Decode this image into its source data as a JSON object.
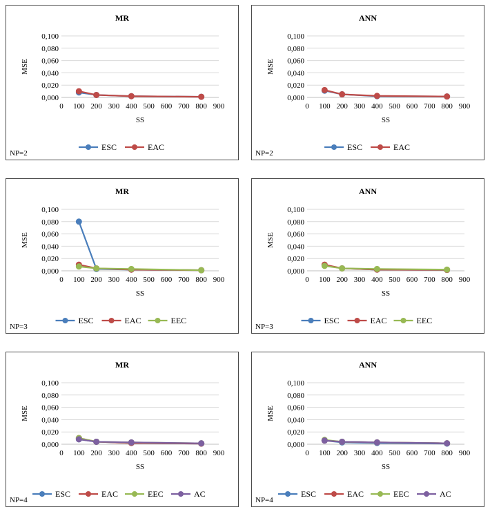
{
  "colors": {
    "ESC": "#4a7ebb",
    "EAC": "#be4b48",
    "EEC": "#98b954",
    "AC": "#7d60a0",
    "grid": "#d9d9d9",
    "axis": "#bfbfbf"
  },
  "chart_data": [
    {
      "type": "line",
      "title": "MR",
      "xlabel": "SS",
      "ylabel": "MSE",
      "np_label": "NP=2",
      "xlim": [
        0,
        900
      ],
      "xticks": [
        "0",
        "100",
        "200",
        "300",
        "400",
        "500",
        "600",
        "700",
        "800",
        "900"
      ],
      "ylim": [
        0,
        0.1
      ],
      "yticks": [
        "0,000",
        "0,020",
        "0,040",
        "0,060",
        "0,080",
        "0,100"
      ],
      "grid": true,
      "legend": "bottom",
      "x": [
        100,
        200,
        400,
        800
      ],
      "series": [
        {
          "name": "ESC",
          "values": [
            0.008,
            0.004,
            0.002,
            0.001
          ]
        },
        {
          "name": "EAC",
          "values": [
            0.01,
            0.004,
            0.002,
            0.001
          ]
        }
      ]
    },
    {
      "type": "line",
      "title": "ANN",
      "xlabel": "SS",
      "ylabel": "MSE",
      "np_label": "NP=2",
      "xlim": [
        0,
        900
      ],
      "xticks": [
        "0",
        "100",
        "200",
        "300",
        "400",
        "500",
        "600",
        "700",
        "800",
        "900"
      ],
      "ylim": [
        0,
        0.1
      ],
      "yticks": [
        "0,000",
        "0,020",
        "0,040",
        "0,060",
        "0,080",
        "0,100"
      ],
      "grid": true,
      "legend": "bottom",
      "x": [
        100,
        200,
        400,
        800
      ],
      "series": [
        {
          "name": "ESC",
          "values": [
            0.011,
            0.005,
            0.002,
            0.0015
          ]
        },
        {
          "name": "EAC",
          "values": [
            0.012,
            0.005,
            0.0025,
            0.0015
          ]
        }
      ]
    },
    {
      "type": "line",
      "title": "MR",
      "xlabel": "SS",
      "ylabel": "MSE",
      "np_label": "NP=3",
      "xlim": [
        0,
        900
      ],
      "xticks": [
        "0",
        "100",
        "200",
        "300",
        "400",
        "500",
        "600",
        "700",
        "800",
        "900"
      ],
      "ylim": [
        0,
        0.1
      ],
      "yticks": [
        "0,000",
        "0,020",
        "0,040",
        "0,060",
        "0,080",
        "0,100"
      ],
      "grid": true,
      "legend": "bottom",
      "x": [
        100,
        200,
        400,
        800
      ],
      "series": [
        {
          "name": "ESC",
          "values": [
            0.08,
            0.003,
            0.002,
            0.001
          ]
        },
        {
          "name": "EAC",
          "values": [
            0.01,
            0.004,
            0.002,
            0.001
          ]
        },
        {
          "name": "EEC",
          "values": [
            0.007,
            0.004,
            0.003,
            0.001
          ]
        }
      ]
    },
    {
      "type": "line",
      "title": "ANN",
      "xlabel": "SS",
      "ylabel": "MSE",
      "np_label": "NP=3",
      "xlim": [
        0,
        900
      ],
      "xticks": [
        "0",
        "100",
        "200",
        "300",
        "400",
        "500",
        "600",
        "700",
        "800",
        "900"
      ],
      "ylim": [
        0,
        0.1
      ],
      "yticks": [
        "0,000",
        "0,020",
        "0,040",
        "0,060",
        "0,080",
        "0,100"
      ],
      "grid": true,
      "legend": "bottom",
      "x": [
        100,
        200,
        400,
        800
      ],
      "series": [
        {
          "name": "ESC",
          "values": [
            0.009,
            0.004,
            0.002,
            0.0015
          ]
        },
        {
          "name": "EAC",
          "values": [
            0.01,
            0.004,
            0.002,
            0.0015
          ]
        },
        {
          "name": "EEC",
          "values": [
            0.008,
            0.004,
            0.003,
            0.002
          ]
        }
      ]
    },
    {
      "type": "line",
      "title": "MR",
      "xlabel": "SS",
      "ylabel": "MSE",
      "np_label": "NP=4",
      "xlim": [
        0,
        900
      ],
      "xticks": [
        "0",
        "100",
        "200",
        "300",
        "400",
        "500",
        "600",
        "700",
        "800",
        "900"
      ],
      "ylim": [
        0,
        0.1
      ],
      "yticks": [
        "0,000",
        "0,020",
        "0,040",
        "0,060",
        "0,080",
        "0,100"
      ],
      "grid": true,
      "legend": "bottom",
      "x": [
        100,
        200,
        400,
        800
      ],
      "series": [
        {
          "name": "ESC",
          "values": [
            0.008,
            0.004,
            0.002,
            0.001
          ]
        },
        {
          "name": "EAC",
          "values": [
            0.01,
            0.004,
            0.002,
            0.001
          ]
        },
        {
          "name": "EEC",
          "values": [
            0.01,
            0.004,
            0.003,
            0.0015
          ]
        },
        {
          "name": "AC",
          "values": [
            0.008,
            0.004,
            0.003,
            0.0015
          ]
        }
      ]
    },
    {
      "type": "line",
      "title": "ANN",
      "xlabel": "SS",
      "ylabel": "MSE",
      "np_label": "NP=4",
      "xlim": [
        0,
        900
      ],
      "xticks": [
        "0",
        "100",
        "200",
        "300",
        "400",
        "500",
        "600",
        "700",
        "800",
        "900"
      ],
      "ylim": [
        0,
        0.1
      ],
      "yticks": [
        "0,000",
        "0,020",
        "0,040",
        "0,060",
        "0,080",
        "0,100"
      ],
      "grid": true,
      "legend": "bottom",
      "x": [
        100,
        200,
        400,
        800
      ],
      "series": [
        {
          "name": "ESC",
          "values": [
            0.006,
            0.003,
            0.002,
            0.001
          ]
        },
        {
          "name": "EAC",
          "values": [
            0.006,
            0.004,
            0.003,
            0.0015
          ]
        },
        {
          "name": "EEC",
          "values": [
            0.007,
            0.004,
            0.003,
            0.0015
          ]
        },
        {
          "name": "AC",
          "values": [
            0.006,
            0.004,
            0.003,
            0.0015
          ]
        }
      ]
    }
  ]
}
